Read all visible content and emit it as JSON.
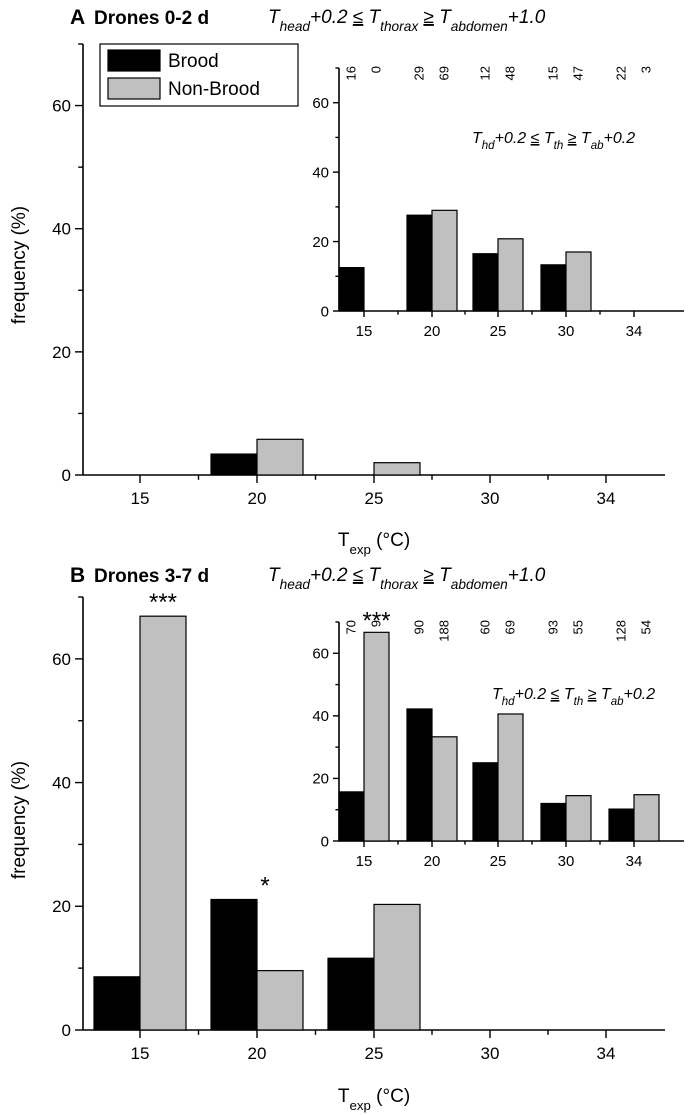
{
  "colors": {
    "brood": "#000000",
    "non_brood": "#c0c0c0",
    "axis": "#000000"
  },
  "chart_data": [
    {
      "id": "A-main",
      "type": "bar",
      "panel_letter": "A",
      "panel_title": "Drones 0-2 d",
      "condition": {
        "lead": "T",
        "s1": "head",
        "t2": "+0.2 ≤ T",
        "s2": "thorax",
        "t3": " ≥ T",
        "s3": "abdomen",
        "t4": "+1.0"
      },
      "categories": [
        "15",
        "20",
        "25",
        "30",
        "34"
      ],
      "series": [
        {
          "name": "Brood",
          "values": [
            0,
            3.4,
            0,
            0,
            0
          ]
        },
        {
          "name": "Non-Brood",
          "values": [
            0,
            5.8,
            2.0,
            0,
            0
          ]
        }
      ],
      "ylim": [
        0,
        70
      ],
      "yticks": [
        "0",
        "20",
        "40",
        "60"
      ],
      "ylabel": "frequency (%)",
      "xlabel": {
        "main": "T",
        "sub": "exp",
        "unit": " (°C)"
      },
      "legend": {
        "placement": "top-left",
        "entries": [
          "Brood",
          "Non-Brood"
        ]
      }
    },
    {
      "id": "A-inset",
      "type": "bar",
      "categories": [
        "15",
        "20",
        "25",
        "30",
        "34"
      ],
      "series": [
        {
          "name": "Brood",
          "values": [
            12.5,
            27.6,
            16.5,
            13.3,
            0
          ]
        },
        {
          "name": "Non-Brood",
          "values": [
            0,
            29.0,
            20.8,
            17.0,
            0
          ]
        }
      ],
      "counts": [
        [
          "16",
          "0"
        ],
        [
          "29",
          "69"
        ],
        [
          "12",
          "48"
        ],
        [
          "15",
          "47"
        ],
        [
          "22",
          "3"
        ]
      ],
      "ylim": [
        0,
        70
      ],
      "yticks": [
        "0",
        "20",
        "40",
        "60"
      ],
      "condition": {
        "lead": "T",
        "s1": "hd",
        "t2": "+0.2 ≤ T",
        "s2": "th",
        "t3": " ≥ T",
        "s3": "ab",
        "t4": "+0.2"
      }
    },
    {
      "id": "B-main",
      "type": "bar",
      "panel_letter": "B",
      "panel_title": "Drones 3-7 d",
      "condition": {
        "lead": "T",
        "s1": "head",
        "t2": "+0.2 ≤ T",
        "s2": "thorax",
        "t3": " ≥ T",
        "s3": "abdomen",
        "t4": "+1.0"
      },
      "categories": [
        "15",
        "20",
        "25",
        "30",
        "34"
      ],
      "series": [
        {
          "name": "Brood",
          "values": [
            8.6,
            21.1,
            11.6,
            0,
            0
          ]
        },
        {
          "name": "Non-Brood",
          "values": [
            66.9,
            9.6,
            20.3,
            0,
            0
          ]
        }
      ],
      "significance": [
        {
          "category": "15",
          "series": "Non-Brood",
          "label": "***"
        },
        {
          "category": "20",
          "series": "Brood",
          "label": "*"
        }
      ],
      "ylim": [
        0,
        70
      ],
      "yticks": [
        "0",
        "20",
        "40",
        "60"
      ],
      "ylabel": "frequency (%)",
      "xlabel": {
        "main": "T",
        "sub": "exp",
        "unit": " (°C)"
      }
    },
    {
      "id": "B-inset",
      "type": "bar",
      "categories": [
        "15",
        "20",
        "25",
        "30",
        "34"
      ],
      "series": [
        {
          "name": "Brood",
          "values": [
            15.7,
            42.2,
            25.0,
            12.0,
            10.2
          ]
        },
        {
          "name": "Non-Brood",
          "values": [
            66.7,
            33.3,
            40.6,
            14.5,
            14.8
          ]
        }
      ],
      "counts": [
        [
          "70",
          "9"
        ],
        [
          "90",
          "188"
        ],
        [
          "60",
          "69"
        ],
        [
          "93",
          "55"
        ],
        [
          "128",
          "54"
        ]
      ],
      "significance": [
        {
          "category": "15",
          "series": "Non-Brood",
          "label": "***"
        }
      ],
      "ylim": [
        0,
        70
      ],
      "yticks": [
        "0",
        "20",
        "40",
        "60"
      ],
      "condition": {
        "lead": "T",
        "s1": "hd",
        "t2": "+0.2 ≤ T",
        "s2": "th",
        "t3": " ≥ T",
        "s3": "ab",
        "t4": "+0.2"
      }
    }
  ]
}
